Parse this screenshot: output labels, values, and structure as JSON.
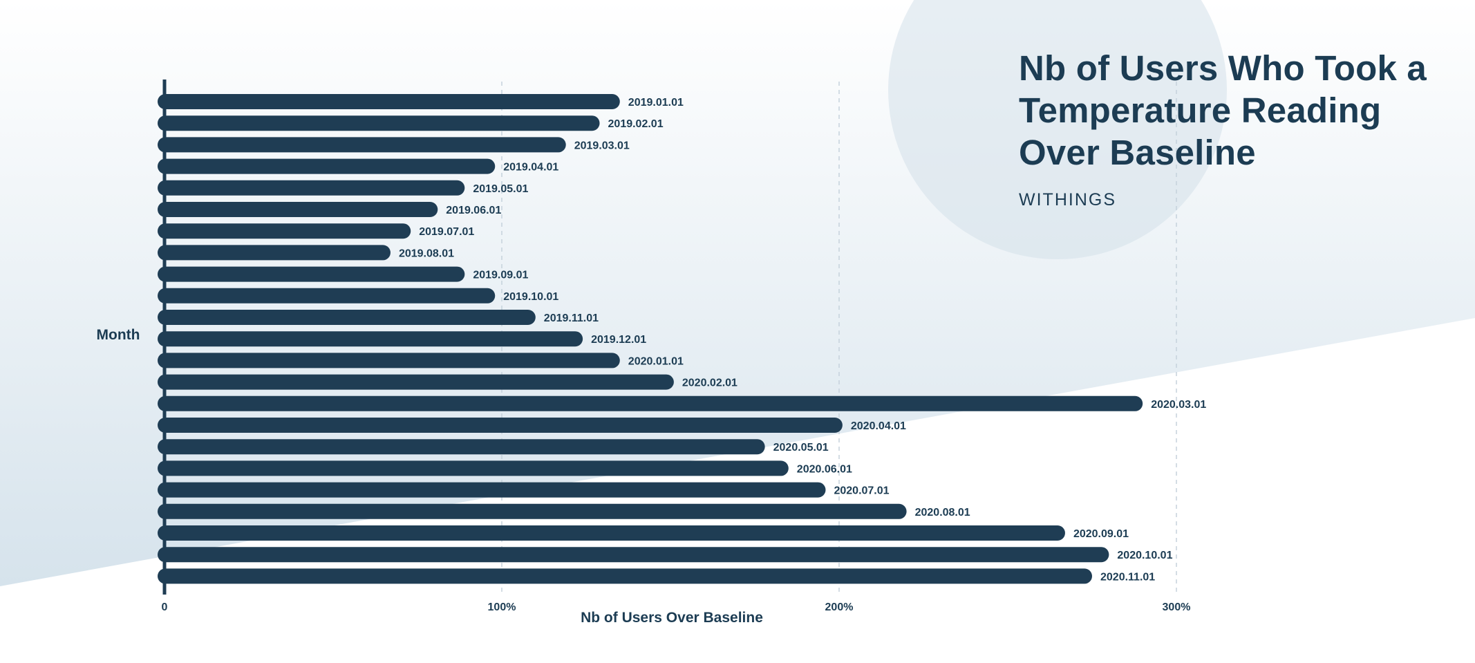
{
  "colors": {
    "bar": "#1f3d54",
    "text": "#1c3c53",
    "band": "#d6e3ec",
    "circle": "#d3e0e9",
    "grid": "#c5d2dc"
  },
  "header": {
    "title": "Nb of Users Who Took a Temperature Reading Over Baseline",
    "subtitle": "WITHINGS"
  },
  "chart_data": {
    "type": "bar",
    "orientation": "horizontal",
    "title": "Nb of Users Who Took a Temperature Reading Over Baseline",
    "source": "WITHINGS",
    "xlabel": "Nb of Users Over Baseline",
    "ylabel": "Month",
    "xlim": [
      0,
      300
    ],
    "xticks": [
      {
        "value": 0,
        "label": "0"
      },
      {
        "value": 100,
        "label": "100%"
      },
      {
        "value": 200,
        "label": "200%"
      },
      {
        "value": 300,
        "label": "300%"
      }
    ],
    "grid": true,
    "categories": [
      "2019.01.01",
      "2019.02.01",
      "2019.03.01",
      "2019.04.01",
      "2019.05.01",
      "2019.06.01",
      "2019.07.01",
      "2019.08.01",
      "2019.09.01",
      "2019.10.01",
      "2019.11.01",
      "2019.12.01",
      "2020.01.01",
      "2020.02.01",
      "2020.03.01",
      "2020.04.01",
      "2020.05.01",
      "2020.06.01",
      "2020.07.01",
      "2020.08.01",
      "2020.09.01",
      "2020.10.01",
      "2020.11.01"
    ],
    "values": [
      135,
      129,
      119,
      98,
      89,
      81,
      73,
      67,
      89,
      98,
      110,
      124,
      135,
      151,
      290,
      201,
      178,
      185,
      196,
      220,
      267,
      280,
      275
    ]
  }
}
